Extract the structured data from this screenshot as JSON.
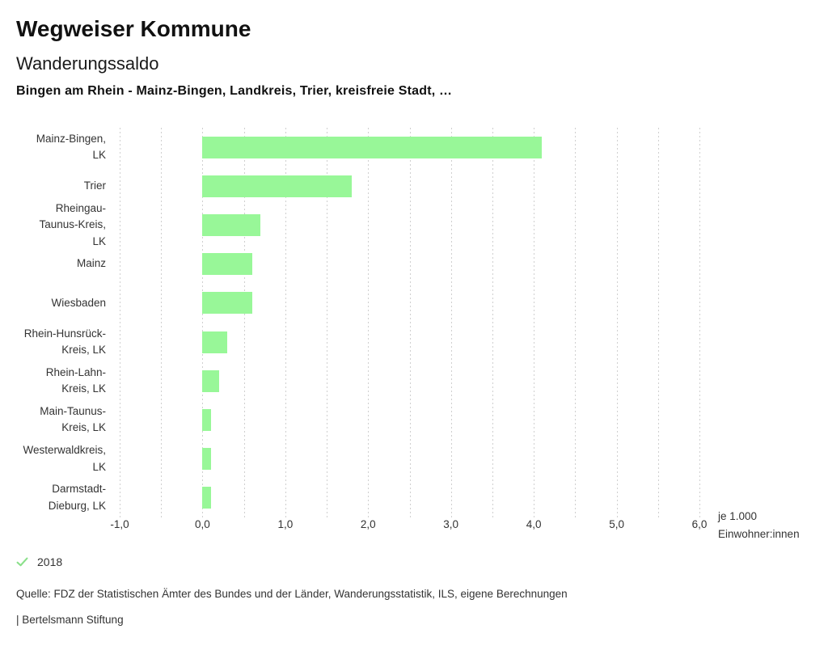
{
  "header": {
    "title": "Wegweiser Kommune",
    "subtitle": "Wanderungssaldo",
    "selection": "Bingen am Rhein - Mainz-Bingen, Landkreis, Trier, kreisfreie Stadt, …"
  },
  "chart_data": {
    "type": "bar",
    "orientation": "horizontal",
    "title": "Wanderungssaldo",
    "subtitle": "Bingen am Rhein - Mainz-Bingen, Landkreis, Trier, kreisfreie Stadt, …",
    "categories": [
      "Mainz-Bingen, LK",
      "Trier",
      "Rheingau-Taunus-Kreis, LK",
      "Mainz",
      "Wiesbaden",
      "Rhein-Hunsrück-Kreis, LK",
      "Rhein-Lahn-Kreis, LK",
      "Main-Taunus-Kreis, LK",
      "Westerwaldkreis, LK",
      "Darmstadt-Dieburg, LK"
    ],
    "category_lines": [
      [
        "Mainz-Bingen,",
        "LK"
      ],
      [
        "Trier"
      ],
      [
        "Rheingau-",
        "Taunus-Kreis,",
        "LK"
      ],
      [
        "Mainz"
      ],
      [
        "Wiesbaden"
      ],
      [
        "Rhein-Hunsrück-",
        "Kreis, LK"
      ],
      [
        "Rhein-Lahn-",
        "Kreis, LK"
      ],
      [
        "Main-Taunus-",
        "Kreis, LK"
      ],
      [
        "Westerwaldkreis,",
        "LK"
      ],
      [
        "Darmstadt-",
        "Dieburg, LK"
      ]
    ],
    "values": [
      4.1,
      1.8,
      0.7,
      0.6,
      0.6,
      0.3,
      0.2,
      0.1,
      0.1,
      0.1
    ],
    "xlim": [
      -1.0,
      6.0
    ],
    "x_ticks": [
      -1,
      0,
      1,
      2,
      3,
      4,
      5,
      6
    ],
    "x_tick_labels": [
      "-1,0",
      "0,0",
      "1,0",
      "2,0",
      "3,0",
      "4,0",
      "5,0",
      "6,0"
    ],
    "gridline_step": 0.5,
    "grid_on": true,
    "xlabel": "je 1.000 Einwohner:innen",
    "unit_label_lines": [
      "je 1.000",
      "Einwohner:innen"
    ],
    "legend_entries": [
      "2018"
    ],
    "bar_color": "#98f798",
    "grid_color": "#cfcfcf"
  },
  "legend": {
    "year": "2018",
    "check_color": "#8ae08a"
  },
  "footer": {
    "source": "Quelle: FDZ der Statistischen Ämter des Bundes und der Länder, Wanderungsstatistik, ILS, eigene Berechnungen",
    "attribution": "| Bertelsmann Stiftung"
  }
}
